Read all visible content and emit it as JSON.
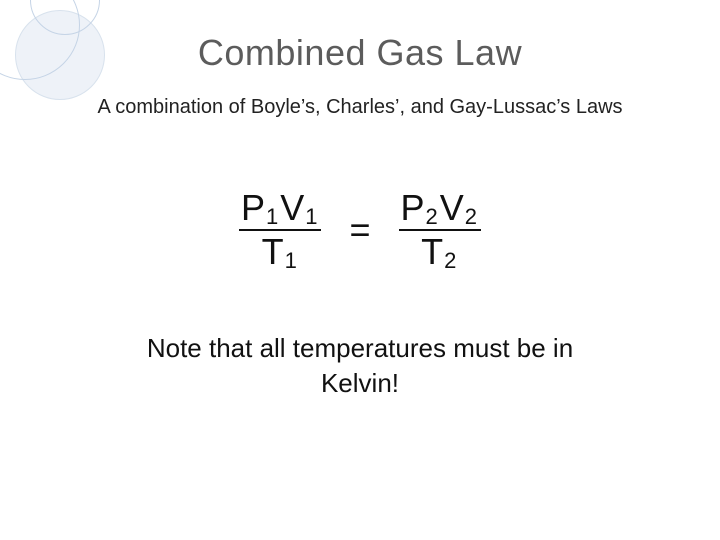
{
  "slide": {
    "title": "Combined Gas Law",
    "subtitle": "A combination of Boyle’s, Charles’, and Gay-Lussac’s Laws",
    "equation": {
      "left": {
        "numerator": {
          "p": "P",
          "psub": "1",
          "v": "V",
          "vsub": "1"
        },
        "denominator": {
          "t": "T",
          "tsub": "1"
        }
      },
      "eq": "=",
      "right": {
        "numerator": {
          "p": "P",
          "psub": "2",
          "v": "V",
          "vsub": "2"
        },
        "denominator": {
          "t": "T",
          "tsub": "2"
        }
      }
    },
    "note": "Note that all temperatures must be in Kelvin!"
  },
  "style": {
    "background_color": "#ffffff",
    "title_color": "#5c5c5c",
    "text_color": "#111111",
    "decoration_stroke": "#c5d4e6",
    "decoration_fill": "#eef2f8",
    "title_fontsize_pt": 27,
    "subtitle_fontsize_pt": 15,
    "equation_fontsize_pt": 27,
    "subscript_fontsize_pt": 16,
    "note_fontsize_pt": 20,
    "font_family": "Arial"
  }
}
